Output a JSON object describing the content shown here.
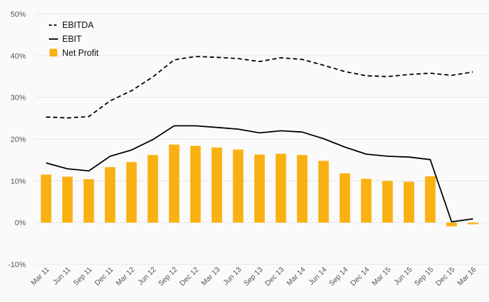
{
  "chart_data": {
    "type": "bar",
    "categories": [
      "Mar 11",
      "Jun 11",
      "Sep 11",
      "Dec 11",
      "Mar 12",
      "Jun 12",
      "Sep 12",
      "Dec 12",
      "Mar 13",
      "Jun 13",
      "Sep 13",
      "Dec 13",
      "Mar 14",
      "Jun 14",
      "Sep 14",
      "Dec 14",
      "Mar 15",
      "Jun 15",
      "Sep 15",
      "Dec 15",
      "Mar 16"
    ],
    "y_ticks": [
      "50%",
      "40%",
      "30%",
      "20%",
      "10%",
      "0%",
      "-10%"
    ],
    "ylim": [
      -10,
      50
    ],
    "unit": "%",
    "grid": true,
    "legend_position": "top-left",
    "series": [
      {
        "name": "EBITDA",
        "type": "line",
        "style": "dashed",
        "color": "#000000",
        "values": [
          25.3,
          25.1,
          25.4,
          29.2,
          31.6,
          34.9,
          39.0,
          39.8,
          39.6,
          39.3,
          38.6,
          39.5,
          39.1,
          37.7,
          36.2,
          35.2,
          35.0,
          35.5,
          35.8,
          35.3,
          36.1
        ]
      },
      {
        "name": "EBIT",
        "type": "line",
        "style": "solid",
        "color": "#000000",
        "values": [
          14.3,
          12.9,
          12.4,
          15.9,
          17.4,
          19.9,
          23.2,
          23.2,
          22.8,
          22.4,
          21.5,
          22.0,
          21.7,
          20.1,
          18.1,
          16.4,
          15.9,
          15.7,
          15.1,
          0.2,
          0.9
        ]
      },
      {
        "name": "Net Profit",
        "type": "bar",
        "color": "#fbb012",
        "values": [
          11.5,
          11.0,
          10.4,
          13.3,
          14.5,
          16.2,
          18.7,
          18.4,
          18.0,
          17.5,
          16.3,
          16.5,
          16.2,
          14.8,
          11.8,
          10.5,
          10.0,
          9.8,
          11.1,
          -0.9,
          -0.4
        ]
      }
    ]
  }
}
